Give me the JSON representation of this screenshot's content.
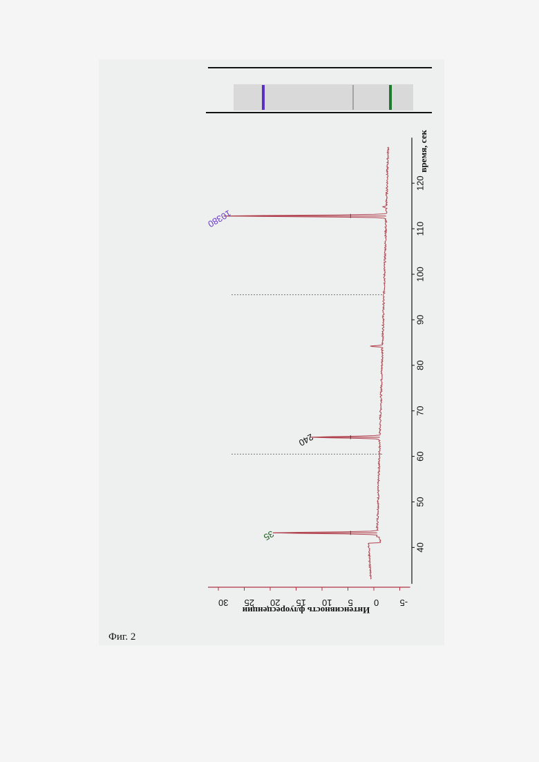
{
  "caption": "Фиг. 2",
  "colors": {
    "trace": "#b0404d",
    "y_axis": "#b03040",
    "label_green": "#1f5a1f",
    "label_black": "#111111",
    "label_purple": "#6a3fc0",
    "band_purple": "#5a2fc8",
    "band_grey": "#8a8a8a",
    "band_green": "#1e7a2e"
  },
  "chart_data": {
    "type": "line",
    "orientation": "rotated-90-cw",
    "xlabel": "время, сек",
    "ylabel": "Интенсивность флуоресценции",
    "xlim": [
      32,
      130
    ],
    "ylim": [
      -7,
      32
    ],
    "x_ticks": [
      40,
      50,
      60,
      70,
      80,
      90,
      100,
      110,
      120
    ],
    "y_ticks": [
      30,
      25,
      20,
      15,
      10,
      5,
      0,
      -5
    ],
    "peaks": [
      {
        "x": 43.2,
        "y": 19.5,
        "label": "35",
        "color_key": "label_green"
      },
      {
        "x": 64.2,
        "y": 12.3,
        "label": "240",
        "color_key": "label_black"
      },
      {
        "x": 112.8,
        "y": 29.0,
        "label": "10380",
        "color_key": "label_purple"
      }
    ],
    "small_features": [
      {
        "x": 84.2,
        "y": 0.8
      },
      {
        "x": 114.8,
        "y": -1.8
      }
    ],
    "dashed_markers_x": [
      60.5,
      95.5
    ],
    "gel_bands": [
      {
        "name": "purple",
        "color_key": "band_purple"
      },
      {
        "name": "grey",
        "color_key": "band_grey"
      },
      {
        "name": "green",
        "color_key": "band_green"
      }
    ]
  }
}
